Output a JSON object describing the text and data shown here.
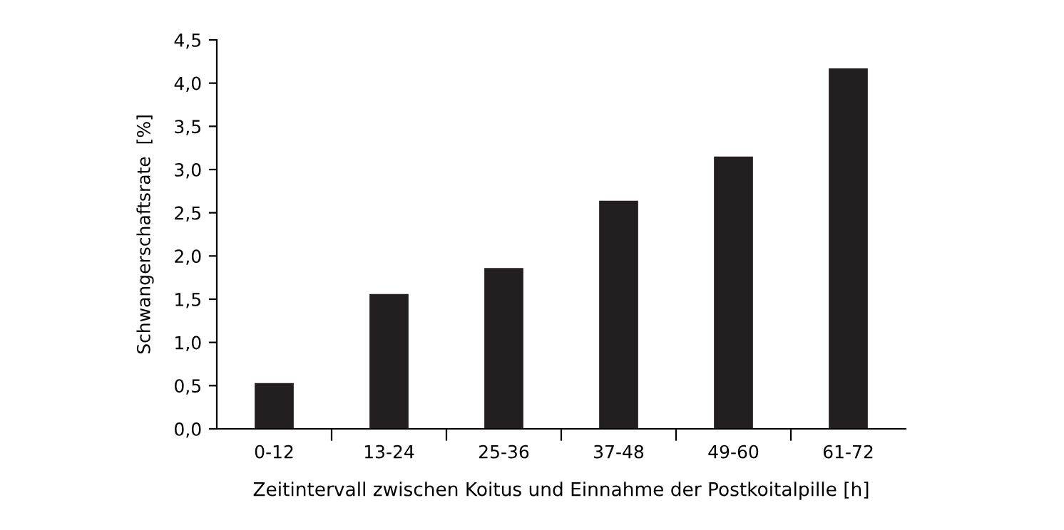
{
  "chart_data": {
    "type": "bar",
    "xlabel": "Zeitintervall zwischen Koitus und Einnahme der Postkoitalpille [h]",
    "ylabel": "Schwangerschaftsrate  [%]",
    "categories": [
      "0-12",
      "13-24",
      "25-36",
      "37-48",
      "49-60",
      "61-72"
    ],
    "values": [
      0.53,
      1.56,
      1.86,
      2.64,
      3.15,
      4.17
    ],
    "color": "#231f20",
    "ylim": [
      0,
      4.5
    ],
    "yticks": [
      {
        "value": 0,
        "label": "0,0"
      },
      {
        "value": 0.5,
        "label": "0,5"
      },
      {
        "value": 1,
        "label": "1,0"
      },
      {
        "value": 1.5,
        "label": "1,5"
      },
      {
        "value": 2,
        "label": "2,0"
      },
      {
        "value": 2.5,
        "label": "2,5"
      },
      {
        "value": 3,
        "label": "3,0"
      },
      {
        "value": 3.5,
        "label": "3,5"
      },
      {
        "value": 4,
        "label": "4,0"
      },
      {
        "value": 4.5,
        "label": "4,5"
      }
    ],
    "grid": false
  }
}
